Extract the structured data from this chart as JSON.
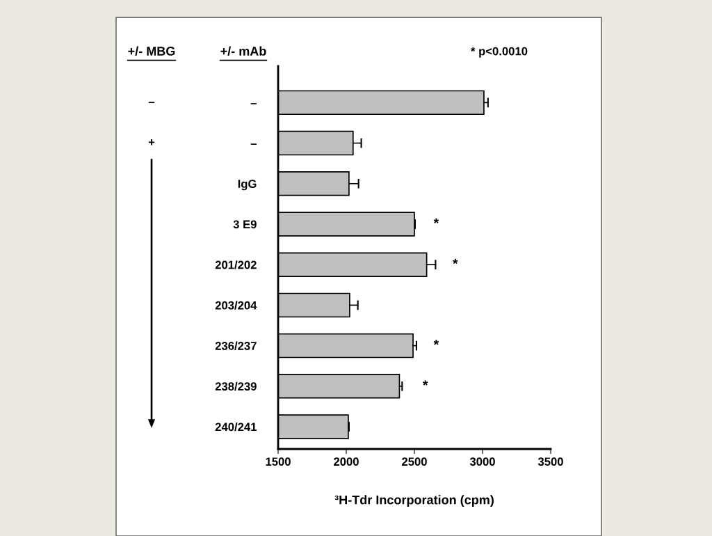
{
  "chart_data": {
    "type": "bar",
    "orientation": "horizontal",
    "xlabel": "³H-Tdr Incorporation (cpm)",
    "categories": [
      "–",
      "–",
      "IgG",
      "3 E9",
      "201/202",
      "203/204",
      "236/237",
      "238/239",
      "240/241"
    ],
    "values": [
      3010,
      2050,
      2020,
      2500,
      2590,
      2025,
      2490,
      2390,
      2015
    ],
    "errors": [
      [
        3010,
        3040
      ],
      [
        2050,
        2110
      ],
      [
        2020,
        2090
      ],
      [
        2500,
        2505
      ],
      [
        2590,
        2655
      ],
      [
        2025,
        2085
      ],
      [
        2490,
        2515
      ],
      [
        2390,
        2410
      ],
      [
        2015,
        2020
      ]
    ],
    "color": "#c0c0c0",
    "xlim": [
      1500,
      3500
    ],
    "xticks": [
      1500,
      2000,
      2500,
      3000,
      3500
    ],
    "grid": false,
    "legend": false,
    "annotations": [
      "+/- MBG",
      "+/- mAb",
      "* p<0.0010",
      "–",
      "+",
      "*",
      "*",
      "*",
      "*"
    ]
  }
}
